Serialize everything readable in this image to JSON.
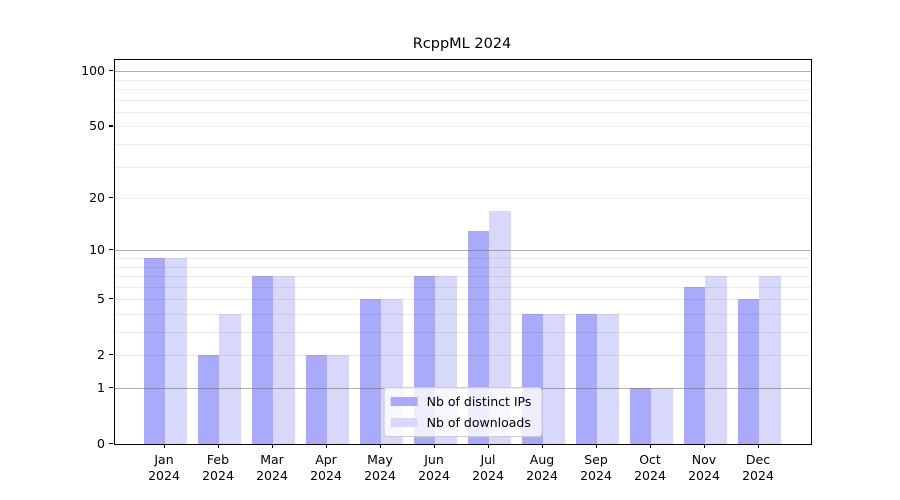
{
  "chart_data": {
    "type": "bar",
    "title": "RcppML 2024",
    "x_categories": [
      "Jan",
      "Feb",
      "Mar",
      "Apr",
      "May",
      "Jun",
      "Jul",
      "Aug",
      "Sep",
      "Oct",
      "Nov",
      "Dec"
    ],
    "x_year": "2024",
    "series": [
      {
        "name": "Nb of distinct IPs",
        "color": "#aaaafa",
        "values": [
          9,
          2,
          7,
          2,
          5,
          7,
          13,
          4,
          4,
          1,
          6,
          5
        ]
      },
      {
        "name": "Nb of downloads",
        "color": "#d8d8fa",
        "values": [
          9,
          4,
          7,
          2,
          5,
          7,
          17,
          4,
          4,
          1,
          7,
          7
        ]
      }
    ],
    "y_axis": {
      "scale": "log1p",
      "tick_values": [
        0,
        1,
        2,
        5,
        10,
        20,
        50,
        100
      ],
      "major_gridlines": [
        1,
        10,
        100
      ],
      "minor_gridlines": [
        2,
        3,
        4,
        5,
        6,
        7,
        8,
        9,
        20,
        30,
        40,
        50,
        60,
        70,
        80,
        90
      ],
      "max": 115,
      "ylim": [
        0,
        115
      ]
    },
    "legend": {
      "position": "lower center",
      "entries": [
        "Nb of distinct IPs",
        "Nb of downloads"
      ]
    },
    "grid": true
  }
}
